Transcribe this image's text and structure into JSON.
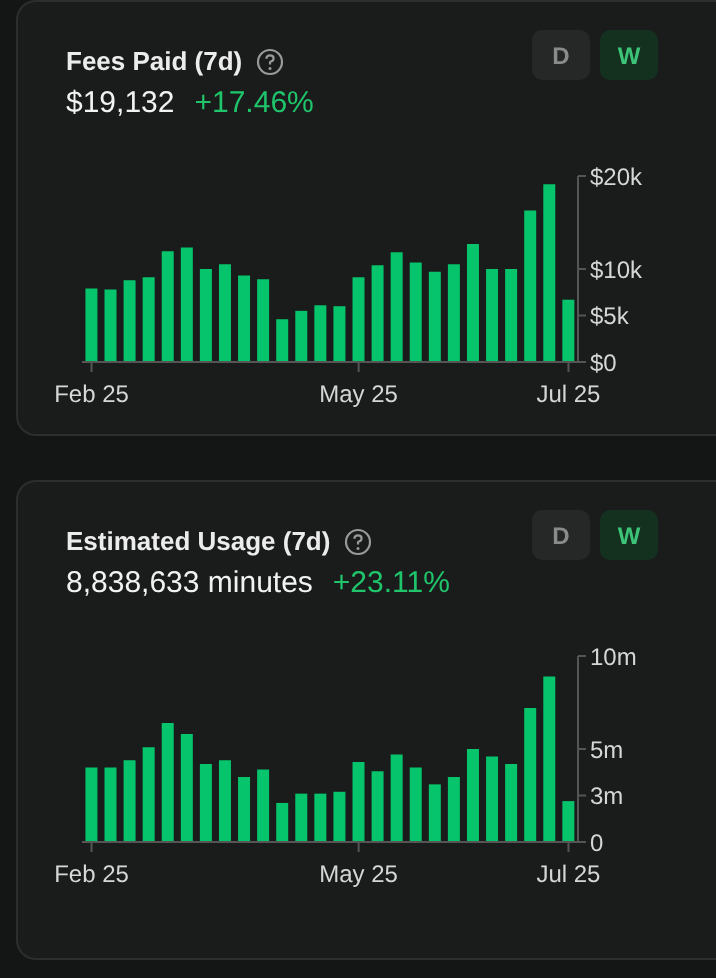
{
  "chart_data": [
    {
      "type": "bar",
      "title": "Fees Paid (7d)",
      "subtitle": "$19,132",
      "annotations": [
        "+17.46%",
        "D",
        "W"
      ],
      "categories": [
        "Feb 25",
        null,
        null,
        null,
        null,
        null,
        null,
        null,
        null,
        null,
        null,
        null,
        null,
        null,
        "May 25",
        null,
        null,
        null,
        null,
        null,
        null,
        null,
        null,
        null,
        null,
        "Jul 25"
      ],
      "values": [
        7900,
        7800,
        8800,
        9100,
        11900,
        12300,
        10000,
        10500,
        9300,
        8900,
        4600,
        5500,
        6100,
        6000,
        9100,
        10400,
        11800,
        10700,
        9700,
        10500,
        12700,
        10000,
        10000,
        16300,
        19100,
        6700
      ],
      "color": "#05c46b",
      "ylim": [
        0,
        20000
      ],
      "yticks": [
        {
          "value": 0,
          "label": "$0"
        },
        {
          "value": 5000,
          "label": "$5k"
        },
        {
          "value": 10000,
          "label": "$10k"
        },
        {
          "value": 20000,
          "label": "$20k"
        }
      ],
      "grid": false,
      "legend": false
    },
    {
      "type": "bar",
      "title": "Estimated Usage (7d)",
      "subtitle": "8,838,633 minutes",
      "annotations": [
        "+23.11%",
        "D",
        "W"
      ],
      "categories": [
        "Feb 25",
        null,
        null,
        null,
        null,
        null,
        null,
        null,
        null,
        null,
        null,
        null,
        null,
        null,
        "May 25",
        null,
        null,
        null,
        null,
        null,
        null,
        null,
        null,
        null,
        null,
        "Jul 25"
      ],
      "values": [
        4000000,
        4000000,
        4400000,
        5100000,
        6400000,
        5800000,
        4200000,
        4400000,
        3500000,
        3900000,
        2100000,
        2600000,
        2600000,
        2700000,
        4300000,
        3800000,
        4700000,
        4000000,
        3100000,
        3500000,
        5000000,
        4600000,
        4200000,
        7200000,
        8900000,
        2200000
      ],
      "color": "#05c46b",
      "ylim": [
        0,
        10000000
      ],
      "yticks": [
        {
          "value": 0,
          "label": "0"
        },
        {
          "value": 2500000,
          "label": "3m"
        },
        {
          "value": 5000000,
          "label": "5m"
        },
        {
          "value": 10000000,
          "label": "10m"
        }
      ],
      "grid": false,
      "legend": false
    }
  ]
}
